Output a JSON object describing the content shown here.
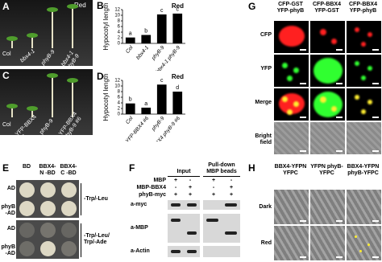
{
  "A": {
    "letter": "A",
    "condition": "Red",
    "labels": [
      "Col",
      "bbx4-1",
      "phyB-9",
      "bbx4-1 phyB-9"
    ]
  },
  "C": {
    "letter": "C",
    "labels": [
      "Col",
      "YFP-BBX4 #6",
      "phyB-9",
      "YFP-BBX4 phyB-9 #6"
    ]
  },
  "chart_data": [
    {
      "type": "bar",
      "letter": "B",
      "condition": "Red",
      "ylabel": "Hypocotyl length",
      "categories": [
        "Col",
        "bbx4-1",
        "phyB-9",
        "bbx4-1 phyB-9"
      ],
      "values": [
        2.1,
        3.0,
        10.3,
        10.6
      ],
      "annotations": [
        "a",
        "b",
        "c",
        "c"
      ],
      "color": "#000000",
      "ylim": [
        0,
        12
      ],
      "yticks": [
        0,
        2,
        4,
        6,
        8,
        10,
        12
      ]
    },
    {
      "type": "bar",
      "letter": "D",
      "condition": "Red",
      "ylabel": "Hypocotyl length",
      "categories": [
        "Col",
        "YFP-BBX4 #6",
        "phyB-9",
        "YFP-BBX4 phyB-9 #6"
      ],
      "values": [
        3.8,
        2.3,
        10.5,
        8.0
      ],
      "annotations": [
        "b",
        "a",
        "c",
        "d"
      ],
      "color": "#000000",
      "ylim": [
        0,
        12
      ],
      "yticks": [
        0,
        2,
        4,
        6,
        8,
        10,
        12
      ]
    }
  ],
  "E": {
    "letter": "E",
    "columns": [
      "BD",
      "BBX4-N -BD",
      "BBX4-C -BD"
    ],
    "rows": [
      "AD",
      "phyB -AD",
      "AD",
      "phyB -AD"
    ],
    "media": [
      "-Trp/-Leu",
      "-Trp/-Leu/\nTrp/-Ade"
    ]
  },
  "F": {
    "letter": "F",
    "groups": [
      "Input",
      "Pull-down MBP beads"
    ],
    "proteins": [
      "MBP",
      "MBP-BBX4",
      "phyB-myc"
    ],
    "signs": [
      [
        "+",
        "-",
        "+",
        "-"
      ],
      [
        "-",
        "+",
        "-",
        "+"
      ],
      [
        "+",
        "+",
        "+",
        "+"
      ]
    ],
    "blots": [
      "a-myc",
      "a-MBP",
      "a-Actin"
    ]
  },
  "G": {
    "letter": "G",
    "columns": [
      "CFP-GST YFP-phyB",
      "CFP-BBX4 YFP-GST",
      "CFP-BBX4 YFP-phyB"
    ],
    "rows": [
      "CFP",
      "YFP",
      "Merge",
      "Bright field"
    ]
  },
  "H": {
    "letter": "H",
    "columns": [
      "BBX4-YFPN YFPC",
      "YFPN phyB-YFPC",
      "BBX4-YFPN phyB-YFPC"
    ],
    "rows": [
      "Dark",
      "Red"
    ]
  }
}
